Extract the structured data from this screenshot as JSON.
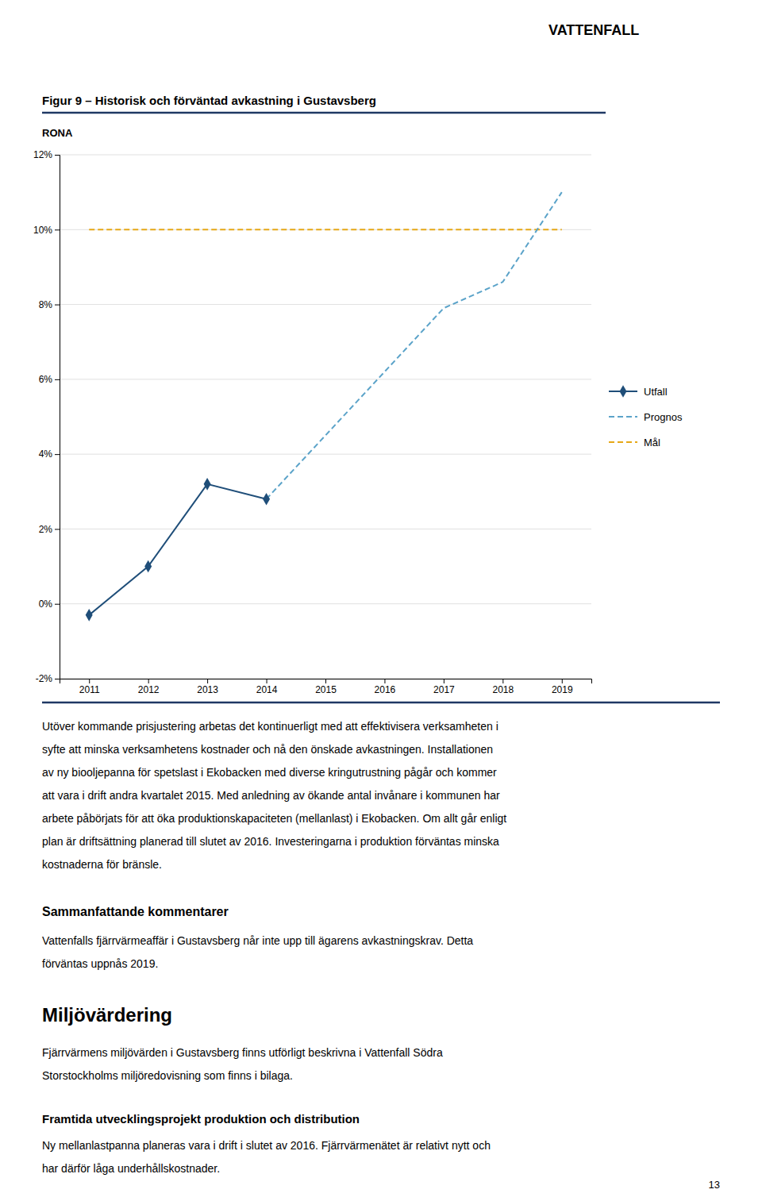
{
  "page": {
    "brand": "VATTENFALL",
    "body": [
      "Utöver kommande prisjustering arbetas det kontinuerligt med att effektivisera verksamheten i",
      "syfte att minska verksamhetens kostnader och nå den önskade avkastningen. Installationen",
      "av ny biooljepanna för spetslast i Ekobacken med diverse kringutrustning pågår och kommer",
      "att vara i drift andra kvartalet 2015. Med anledning av ökande antal invånare i kommunen har",
      "arbete påbörjats för att öka produktionskapaciteten (mellanlast) i Ekobacken. Om allt går enligt",
      "plan är driftsättning planerad till slutet av 2016. Investeringarna i produktion förväntas minska",
      "kostnaderna för bränsle."
    ],
    "sections": [
      {
        "header": "Sammanfattande kommentarer",
        "lines": [
          "Vattenfalls fjärrvärmeaffär i Gustavsberg når inte upp till ägarens avkastningskrav. Detta",
          "förväntas uppnås 2019."
        ]
      },
      {
        "header": "Miljövärdering",
        "lines": [
          "Fjärrvärmens miljövärden i Gustavsberg finns utförligt beskrivna i Vattenfall Södra",
          "Storstockholms  miljöredovisning som finns i bilaga."
        ]
      },
      {
        "header": "Framtida utvecklingsprojekt produktion och distribution",
        "lines": [
          "Ny mellanlastpanna planeras vara i drift i slutet av 2016. Fjärrvärmenätet är relativt nytt och",
          "har därför låga underhållskostnader."
        ]
      }
    ],
    "page_number": "13"
  },
  "chart_data": {
    "type": "line",
    "title": "Figur 9 – Historisk och förväntad avkastning i Gustavsberg",
    "ylabel": "RONA",
    "xlim": [
      2010.5,
      2019.5
    ],
    "xticks": [
      2011,
      2012,
      2013,
      2014,
      2015,
      2016,
      2017,
      2018,
      2019
    ],
    "ylim": [
      -0.02,
      0.12
    ],
    "yticks": [
      {
        "value": -0.02,
        "label": "-2%"
      },
      {
        "value": 0.0,
        "label": "0%"
      },
      {
        "value": 0.02,
        "label": "2%"
      },
      {
        "value": 0.04,
        "label": "4%"
      },
      {
        "value": 0.06,
        "label": "6%"
      },
      {
        "value": 0.08,
        "label": "8%"
      },
      {
        "value": 0.1,
        "label": "10%"
      },
      {
        "value": 0.12,
        "label": "12%"
      }
    ],
    "grid": true,
    "legend": "right",
    "series": [
      {
        "name": "Utfall",
        "color": "#1f4e79",
        "line_style": "solid",
        "marker": "diamond",
        "x": [
          2011,
          2012,
          2013,
          2014
        ],
        "values": [
          -0.003,
          0.01,
          0.032,
          0.028
        ]
      },
      {
        "name": "Prognos",
        "color": "#5ba3c9",
        "line_style": "dashed",
        "x": [
          2014,
          2015,
          2016,
          2017,
          2018,
          2019
        ],
        "values": [
          0.028,
          0.045,
          0.062,
          0.079,
          0.086,
          0.11
        ]
      },
      {
        "name": "Mål",
        "color": "#e6a817",
        "line_style": "dashed",
        "x": [
          2011,
          2012,
          2013,
          2014,
          2015,
          2016,
          2017,
          2018,
          2019
        ],
        "values": [
          0.1,
          0.1,
          0.1,
          0.1,
          0.1,
          0.1,
          0.1,
          0.1,
          0.1
        ]
      }
    ]
  }
}
